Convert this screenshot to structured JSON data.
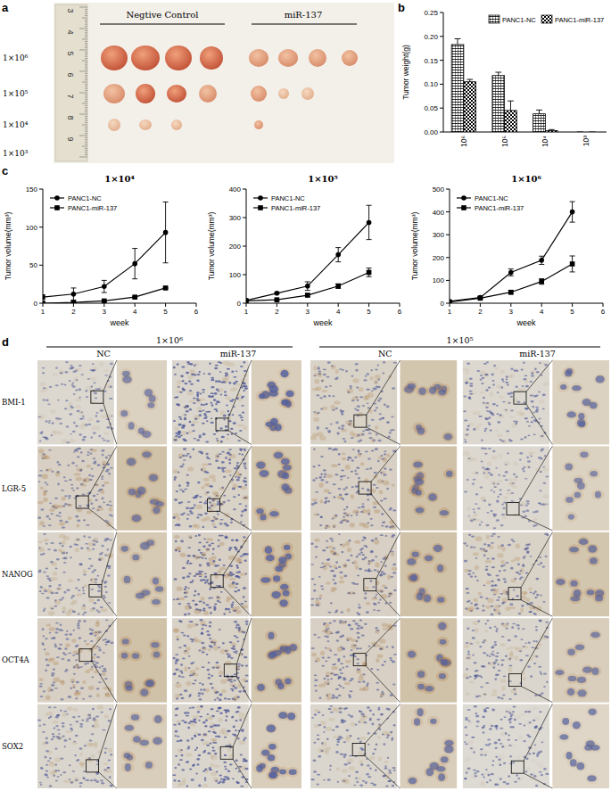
{
  "panel_labels": [
    "a",
    "b",
    "c",
    "d"
  ],
  "photo": {
    "group_labels": [
      "Negtive Control",
      "miR-137"
    ],
    "row_labels": [
      "1×10⁶",
      "1×10⁵",
      "1×10⁴",
      "1×10³"
    ],
    "ruler_labels": [
      "3",
      "4",
      "5",
      "6",
      "7",
      "8",
      "9"
    ]
  },
  "chart_data": [
    {
      "type": "bar",
      "categories": [
        "10⁶",
        "10⁵",
        "10⁴",
        "10³"
      ],
      "y_label": "Tumor weight(g)",
      "ylim": [
        0,
        0.25
      ],
      "yticks": [
        {
          "value": 0,
          "label": "0.00"
        },
        0.05,
        {
          "value": 0.1,
          "label": "0.10"
        },
        0.15,
        {
          "value": 0.2,
          "label": "0.20"
        },
        0.25
      ],
      "legend": "upper right",
      "series": [
        {
          "name": "PANC1-NC",
          "color": "#000000",
          "values": [
            0.183,
            0.118,
            0.038,
            0
          ],
          "errors": [
            0.012,
            0.007,
            0.008,
            0
          ]
        },
        {
          "name": "PANC1-miR-137",
          "color": "#000000",
          "values": [
            0.105,
            0.045,
            0.003,
            0
          ],
          "errors": [
            0.005,
            0.02,
            0.002,
            0
          ]
        }
      ]
    },
    {
      "type": "line",
      "title": "1×10⁴",
      "x": [
        1,
        2,
        3,
        4,
        5
      ],
      "xlim": [
        1,
        6
      ],
      "xticks": [
        1,
        2,
        3,
        4,
        5,
        6
      ],
      "ylim": [
        0,
        150
      ],
      "yticks": [
        0,
        50,
        100,
        150
      ],
      "x_label": "week",
      "y_label": "Tumor volume(mm³)",
      "legend": "upper left",
      "series": [
        {
          "name": "PANC1-NC",
          "color": "#000000",
          "marker": "circle",
          "values": [
            8,
            12,
            22,
            52,
            93
          ],
          "errors": [
            3,
            8,
            8,
            20,
            40
          ]
        },
        {
          "name": "PANC1-miR-137",
          "color": "#000000",
          "marker": "square",
          "values": [
            0,
            1,
            3,
            8,
            20
          ],
          "errors": [
            0,
            0,
            1,
            1,
            1
          ]
        }
      ]
    },
    {
      "type": "line",
      "title": "1×10⁵",
      "x": [
        1,
        2,
        3,
        4,
        5
      ],
      "xlim": [
        1,
        6
      ],
      "xticks": [
        1,
        2,
        3,
        4,
        5,
        6
      ],
      "ylim": [
        0,
        400
      ],
      "yticks": [
        0,
        100,
        200,
        300,
        400
      ],
      "x_label": "week",
      "y_label": "Tumor volume(mm³)",
      "legend": "upper left",
      "series": [
        {
          "name": "PANC1-NC",
          "color": "#000000",
          "marker": "circle",
          "values": [
            10,
            35,
            60,
            170,
            283
          ],
          "errors": [
            2,
            3,
            15,
            25,
            60
          ]
        },
        {
          "name": "PANC1-miR-137",
          "color": "#000000",
          "marker": "square",
          "values": [
            8,
            12,
            28,
            60,
            108
          ],
          "errors": [
            1,
            2,
            5,
            8,
            15
          ]
        }
      ]
    },
    {
      "type": "line",
      "title": "1×10⁶",
      "x": [
        1,
        2,
        3,
        4,
        5
      ],
      "xlim": [
        1,
        6
      ],
      "xticks": [
        1,
        2,
        3,
        4,
        5,
        6
      ],
      "ylim": [
        0,
        500
      ],
      "yticks": [
        0,
        100,
        200,
        300,
        400,
        500
      ],
      "x_label": "week",
      "y_label": "Tumor volume(mm³)",
      "legend": "upper left",
      "series": [
        {
          "name": "PANC1-NC",
          "color": "#000000",
          "marker": "circle",
          "values": [
            8,
            25,
            135,
            188,
            400
          ],
          "errors": [
            2,
            5,
            15,
            18,
            45
          ]
        },
        {
          "name": "PANC1-miR-137",
          "color": "#000000",
          "marker": "square",
          "values": [
            5,
            22,
            48,
            95,
            172
          ],
          "errors": [
            1,
            3,
            8,
            12,
            35
          ]
        }
      ]
    }
  ],
  "ihc": {
    "group_titles": [
      "1×10⁶",
      "1×10⁵"
    ],
    "column_labels": [
      "NC",
      "miR-137"
    ],
    "rows": [
      "BMI-1",
      "LGR-5",
      "NANOG",
      "OCT4A",
      "SOX2"
    ]
  }
}
